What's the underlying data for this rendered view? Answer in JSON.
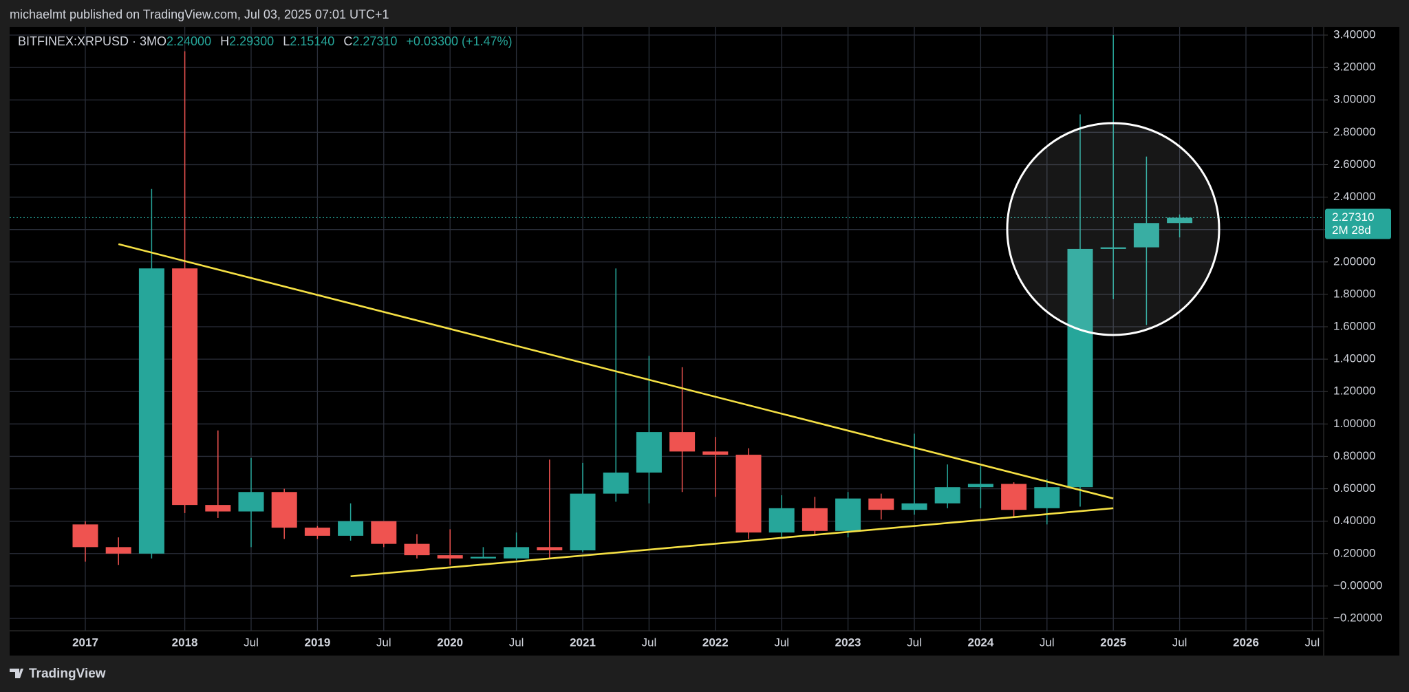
{
  "chart_data": {
    "type": "candlestick",
    "published": "michaelmt published on TradingView.com, Jul 03, 2025 07:01 UTC+1",
    "symbol": "BITFINEX:XRPUSD · 3M",
    "ohlc_legend": {
      "O_label": "O",
      "O": "2.24000",
      "H_label": "H",
      "H": "2.29300",
      "L_label": "L",
      "L": "2.15140",
      "C_label": "C",
      "C": "2.27310",
      "change": "+0.03300 (+1.47%)"
    },
    "brand": "TradingView",
    "categories": [
      "2017",
      null,
      null,
      "2018",
      null,
      "Jul",
      null,
      "2019",
      null,
      "Jul",
      null,
      "2020",
      null,
      "Jul",
      null,
      "2021",
      null,
      "Jul",
      null,
      "2022",
      null,
      "Jul",
      null,
      "2023",
      null,
      "Jul",
      null,
      "2024",
      null,
      "Jul",
      null,
      "2025",
      null,
      "Jul",
      null,
      "2026",
      null,
      "Jul"
    ],
    "open": [
      0.38,
      0.24,
      0.2,
      1.96,
      0.5,
      0.46,
      0.58,
      0.36,
      0.31,
      0.4,
      0.26,
      0.19,
      0.17,
      0.17,
      0.24,
      0.22,
      0.57,
      0.7,
      0.95,
      0.83,
      0.81,
      0.33,
      0.48,
      0.34,
      0.54,
      0.47,
      0.51,
      0.61,
      0.63,
      0.48,
      0.61,
      2.08,
      2.09,
      2.24,
      null,
      null,
      null,
      null
    ],
    "high": [
      0.4,
      0.3,
      2.45,
      3.3,
      0.96,
      0.79,
      0.6,
      0.37,
      0.51,
      0.4,
      0.32,
      0.35,
      0.24,
      0.33,
      0.78,
      0.76,
      1.96,
      1.42,
      1.35,
      0.92,
      0.85,
      0.56,
      0.55,
      0.58,
      0.57,
      0.94,
      0.75,
      0.74,
      0.64,
      0.66,
      2.91,
      3.4,
      2.65,
      2.293,
      null,
      null,
      null,
      null
    ],
    "low": [
      0.15,
      0.13,
      0.17,
      0.45,
      0.42,
      0.24,
      0.29,
      0.29,
      0.28,
      0.24,
      0.17,
      0.13,
      0.17,
      0.16,
      0.17,
      0.21,
      0.52,
      0.51,
      0.58,
      0.55,
      0.29,
      0.3,
      0.32,
      0.3,
      0.41,
      0.44,
      0.48,
      0.48,
      0.42,
      0.38,
      0.49,
      1.77,
      1.61,
      2.1514,
      null,
      null,
      null,
      null
    ],
    "close": [
      0.24,
      0.2,
      1.96,
      0.5,
      0.46,
      0.58,
      0.36,
      0.31,
      0.4,
      0.26,
      0.19,
      0.17,
      0.18,
      0.24,
      0.22,
      0.57,
      0.7,
      0.95,
      0.83,
      0.81,
      0.33,
      0.48,
      0.34,
      0.54,
      0.47,
      0.51,
      0.61,
      0.63,
      0.47,
      0.61,
      2.08,
      2.09,
      2.24,
      2.2731,
      null,
      null,
      null,
      null
    ],
    "up_color": "#26a69a",
    "down_color": "#ef5350",
    "trendlines": [
      {
        "color": "#f5e044",
        "x": [
          1,
          31
        ],
        "y": [
          2.11,
          0.54
        ]
      },
      {
        "color": "#f5e044",
        "x": [
          8,
          31
        ],
        "y": [
          0.06,
          0.48
        ]
      }
    ],
    "price_label": {
      "price": "2.27310",
      "countdown": "2M 28d"
    },
    "ylim": [
      -0.2,
      3.4
    ],
    "yticks": [
      {
        "value": -0.2,
        "label": "−0.20000"
      },
      {
        "value": 0,
        "label": "−0.00000"
      },
      {
        "value": 0.2,
        "label": "0.20000"
      },
      {
        "value": 0.4,
        "label": "0.40000"
      },
      {
        "value": 0.6,
        "label": "0.60000"
      },
      {
        "value": 0.8,
        "label": "0.80000"
      },
      {
        "value": 1.0,
        "label": "1.00000"
      },
      {
        "value": 1.2,
        "label": "1.20000"
      },
      {
        "value": 1.4,
        "label": "1.40000"
      },
      {
        "value": 1.6,
        "label": "1.60000"
      },
      {
        "value": 1.8,
        "label": "1.80000"
      },
      {
        "value": 2.0,
        "label": "2.00000"
      },
      {
        "value": 2.2,
        "label": "2.20000"
      },
      {
        "value": 2.4,
        "label": "2.40000"
      },
      {
        "value": 2.6,
        "label": "2.60000"
      },
      {
        "value": 2.8,
        "label": "2.80000"
      },
      {
        "value": 3.0,
        "label": "3.00000"
      },
      {
        "value": 3.2,
        "label": "3.20000"
      },
      {
        "value": 3.4,
        "label": "3.40000"
      }
    ],
    "grid": true
  }
}
